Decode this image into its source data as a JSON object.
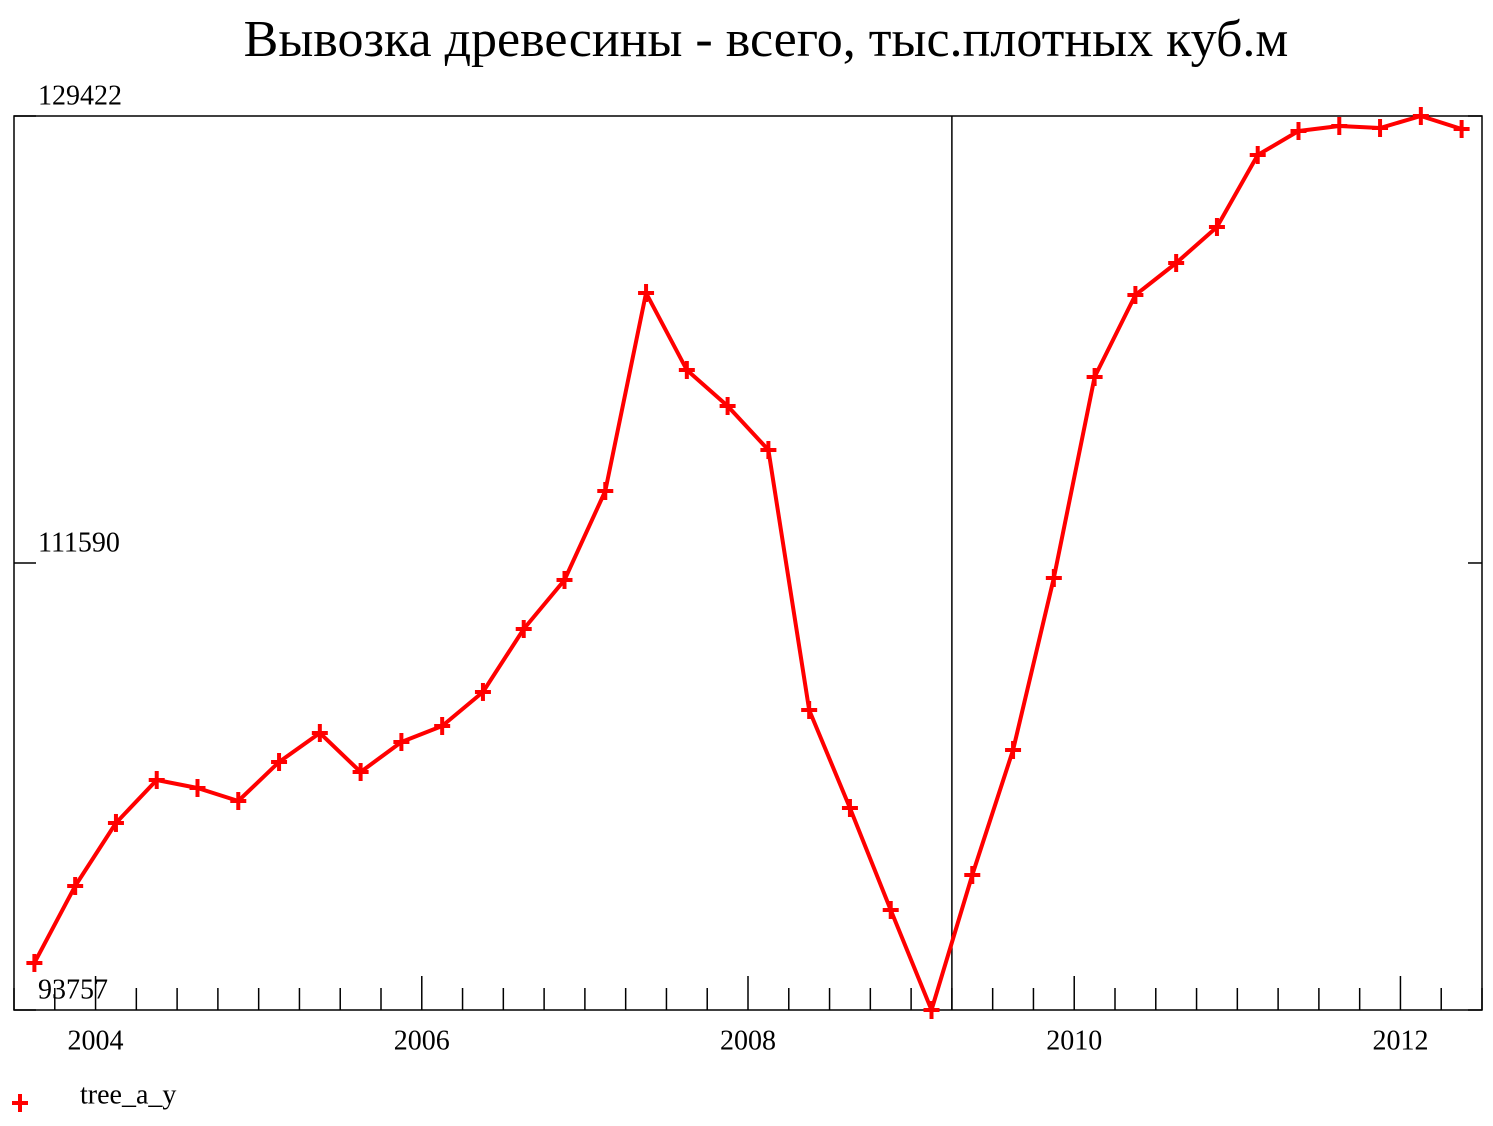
{
  "chart_data": {
    "type": "line",
    "title": "Вывозка древесины - всего, тыс.плотных куб.м",
    "x": [
      2003.625,
      2003.875,
      2004.125,
      2004.375,
      2004.625,
      2004.875,
      2005.125,
      2005.375,
      2005.625,
      2005.875,
      2006.125,
      2006.375,
      2006.625,
      2006.875,
      2007.125,
      2007.375,
      2007.625,
      2007.875,
      2008.125,
      2008.375,
      2008.625,
      2008.875,
      2009.125,
      2009.375,
      2009.625,
      2009.875,
      2010.125,
      2010.375,
      2010.625,
      2010.875,
      2011.125,
      2011.375,
      2011.625,
      2011.875,
      2012.125,
      2012.375
    ],
    "series": [
      {
        "name": "tree_a_y",
        "color": "#ff0000",
        "values": [
          95633,
          98704,
          101218,
          102933,
          102614,
          102095,
          103651,
          104808,
          103252,
          104449,
          105087,
          106444,
          108957,
          110912,
          114462,
          122361,
          119289,
          117853,
          116098,
          105726,
          101816,
          97747,
          93757,
          99143,
          104130,
          110991,
          119010,
          122281,
          123558,
          124994,
          127866,
          128824,
          129023,
          128943,
          129422,
          128903
        ]
      }
    ],
    "xlim": [
      2003.5,
      2012.5
    ],
    "xticks": [
      2004,
      2006,
      2008,
      2010,
      2012
    ],
    "xminorticks": [
      2003.5,
      2003.75,
      2004.25,
      2004.5,
      2004.75,
      2005,
      2005.25,
      2005.5,
      2005.75,
      2006.25,
      2006.5,
      2006.75,
      2007,
      2007.25,
      2007.5,
      2007.75,
      2008.25,
      2008.5,
      2008.75,
      2009,
      2009.25,
      2009.5,
      2009.75,
      2010.25,
      2010.5,
      2010.75,
      2011,
      2011.25,
      2011.5,
      2011.75,
      2012.25,
      2012.5
    ],
    "ylim": [
      93757,
      129422
    ],
    "yticks": [
      93757,
      111590,
      129422
    ],
    "vline": 2009.25,
    "legend": "bottom-left"
  }
}
